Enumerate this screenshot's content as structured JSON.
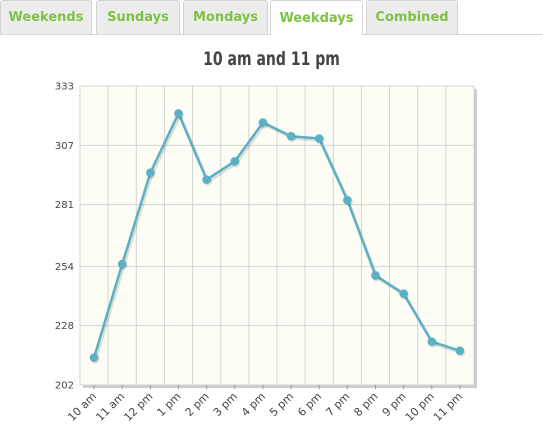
{
  "tabs": [
    {
      "label": "Weekends",
      "active": false
    },
    {
      "label": "Sundays",
      "active": false
    },
    {
      "label": "Mondays",
      "active": false
    },
    {
      "label": "Weekdays",
      "active": true
    },
    {
      "label": "Combined",
      "active": false
    }
  ],
  "colors": {
    "tab_text": "#7ec244",
    "line": "#5ab0c4",
    "plot_background": "#fdfdf5",
    "grid": "#d4d4d4"
  },
  "chart_data": {
    "type": "line",
    "title": "10 am and 11 pm",
    "xlabel": "",
    "ylabel": "",
    "categories": [
      "10 am",
      "11 am",
      "12 pm",
      "1 pm",
      "2 pm",
      "3 pm",
      "4 pm",
      "5 pm",
      "6 pm",
      "7 pm",
      "8 pm",
      "9 pm",
      "10 pm",
      "11 pm"
    ],
    "series": [
      {
        "values": [
          214,
          255,
          295,
          321,
          292,
          300,
          317,
          311,
          310,
          283,
          250,
          242,
          221,
          217
        ]
      }
    ],
    "yticks": [
      202,
      228,
      254,
      281,
      307,
      333
    ],
    "ylim": [
      202,
      333
    ],
    "grid": true,
    "legend": "none"
  }
}
